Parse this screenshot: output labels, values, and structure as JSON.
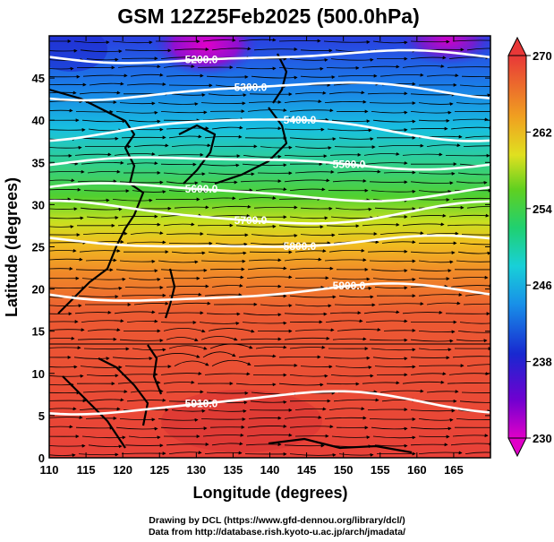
{
  "title": "GSM 12Z25Feb2025 (500.0hPa)",
  "xlabel": "Longitude (degrees)",
  "ylabel": "Latitude  (degrees)",
  "xticks": [
    "110",
    "115",
    "120",
    "125",
    "130",
    "135",
    "140",
    "145",
    "150",
    "155",
    "160",
    "165"
  ],
  "yticks": [
    "0",
    "5",
    "10",
    "15",
    "20",
    "25",
    "30",
    "35",
    "40",
    "45"
  ],
  "colorbar": {
    "ticks": [
      "230",
      "238",
      "246",
      "254",
      "262",
      "270"
    ],
    "range": [
      230,
      270
    ]
  },
  "contours": [
    {
      "label": "5200.0",
      "lat": 47.5
    },
    {
      "label": "5300.0",
      "lat": 43.5
    },
    {
      "label": "5400.0",
      "lat": 39.0
    },
    {
      "label": "5500.0",
      "lat": 35.0
    },
    {
      "label": "5600.0",
      "lat": 31.5
    },
    {
      "label": "5700.0",
      "lat": 29.0
    },
    {
      "label": "5800.0",
      "lat": 25.5
    },
    {
      "label": "5900.0",
      "lat": 19.5
    },
    {
      "label": "5910.0",
      "lat": 6.5
    }
  ],
  "credits": {
    "line1": "Drawing by DCL (https://www.gfd-dennou.org/library/dcl/)",
    "line2": "Data from http://database.rish.kyoto-u.ac.jp/arch/jmadata/"
  },
  "colors": {
    "cold": "#c800c8",
    "blue": "#1a2fd0",
    "cyan": "#18c8d8",
    "green": "#44c830",
    "yellow": "#e8e020",
    "orange": "#f0a020",
    "red": "#e84838"
  }
}
